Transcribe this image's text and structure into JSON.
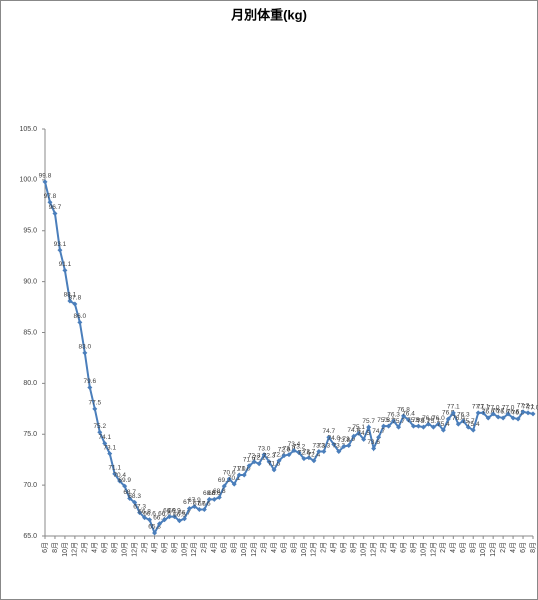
{
  "chart_data": {
    "type": "line",
    "title": "月別体重(kg)",
    "categories": [
      "6月",
      null,
      "8月",
      null,
      "10月",
      null,
      "12月",
      null,
      "2月",
      null,
      "4月",
      null,
      "6月",
      null,
      "8月",
      null,
      "10月",
      null,
      "12月",
      null,
      "2月",
      null,
      "4月",
      null,
      "6月",
      null,
      "8月",
      null,
      "10月",
      null,
      "12月",
      null,
      "2月",
      null,
      "4月",
      null,
      "6月",
      null,
      "8月",
      null,
      "10月",
      null,
      "12月",
      null,
      "2月",
      null,
      "4月",
      null,
      "6月",
      null,
      "8月",
      null,
      "10月",
      null,
      "12月",
      null,
      "2月",
      null,
      "4月",
      null,
      "6月",
      null,
      "8月",
      null,
      "10月",
      null,
      "12月",
      null,
      "2月",
      null,
      "4月",
      null,
      "6月",
      null,
      "8月",
      null,
      "10月",
      null,
      "12月",
      null,
      "2月",
      null,
      "4月",
      null,
      "6月",
      null,
      "8月",
      null,
      "10月",
      null,
      "12月",
      null,
      "2月",
      null,
      "4月",
      null,
      "6月",
      null,
      "8月"
    ],
    "series": [
      {
        "name": "体重",
        "color": "#4a7ebb",
        "values": [
          99.8,
          97.8,
          96.7,
          93.1,
          91.1,
          88.1,
          87.8,
          86.0,
          83.0,
          79.6,
          77.5,
          75.2,
          74.1,
          73.1,
          71.1,
          70.4,
          69.9,
          68.7,
          68.3,
          67.3,
          66.8,
          66.6,
          65.3,
          66.2,
          66.6,
          66.9,
          66.9,
          66.5,
          66.7,
          67.7,
          67.9,
          67.6,
          67.6,
          68.6,
          68.6,
          68.8,
          69.9,
          70.6,
          70.1,
          71.0,
          71.0,
          71.9,
          72.3,
          72.1,
          73.0,
          72.3,
          71.5,
          72.4,
          72.9,
          73.0,
          73.4,
          73.2,
          72.6,
          72.7,
          72.4,
          73.3,
          73.3,
          74.7,
          74.0,
          73.3,
          73.8,
          73.9,
          74.8,
          75.1,
          74.5,
          75.7,
          73.6,
          74.7,
          75.8,
          75.8,
          76.3,
          75.7,
          76.8,
          76.4,
          75.8,
          75.8,
          75.7,
          76.0,
          75.7,
          76.0,
          75.4,
          76.5,
          77.1,
          76.0,
          76.3,
          75.7,
          75.4,
          77.1,
          77.1,
          76.6,
          77.0,
          76.7,
          76.6,
          77.0,
          76.6,
          76.5,
          77.2,
          77.1,
          77.0
        ],
        "value_labels": [
          "99.8",
          "97.8",
          "96.7",
          "93.1",
          "91.1",
          "88.1",
          "87.8",
          "86.0",
          "83.0",
          "79.6",
          "77.5",
          "75.2",
          "74.1",
          "73.1",
          "71.1",
          "70.4",
          "69.9",
          "68.7",
          "68.3",
          "67.3",
          "66.8",
          "66.6",
          "65.3",
          "66.2",
          "66.6",
          "66.9",
          "66.9",
          "66.5",
          "66.7",
          "67.7",
          "67.9",
          "67.6",
          "67.6",
          "68.6",
          "68.6",
          "68.8",
          "69.9",
          "70.6",
          "70.1",
          "71.0",
          "71.0",
          "71.9",
          "72.3",
          "72.1",
          "73.0",
          "72.3",
          "71.5",
          "72.4",
          "72.9",
          "73.0",
          "73.4",
          "73.2",
          "72.6",
          "72.7",
          "72.4",
          "73.3",
          "73.3",
          "74.7",
          "74.0",
          "73.3",
          "73.8",
          "73.9",
          "74.8",
          "75.1",
          "74.5",
          "75.7",
          "73.6",
          "74.7",
          "75.8",
          "75.8",
          "76.3",
          "75.7",
          "76.8",
          "76.4",
          "75.8",
          "75.8",
          "75.7",
          "76.0",
          "75.7",
          "76.0",
          "75.4",
          "76.5",
          "77.1",
          "76.0",
          "76.3",
          "75.7",
          "75.4",
          "77.1",
          "77.1",
          "76.6",
          "77.0",
          "76.7",
          "76.6",
          "77.0",
          "76.6",
          "76.5",
          "77.2",
          "77.1",
          "77.0"
        ]
      }
    ],
    "ylim": [
      65,
      105
    ],
    "yticks": [
      {
        "value": 65,
        "label": "65.0"
      },
      {
        "value": 70,
        "label": "70.0"
      },
      {
        "value": 75,
        "label": "75.0"
      },
      {
        "value": 80,
        "label": "80.0"
      },
      {
        "value": 85,
        "label": "85.0"
      },
      {
        "value": 90,
        "label": "90.0"
      },
      {
        "value": 95,
        "label": "95.0"
      },
      {
        "value": 100,
        "label": "100.0"
      },
      {
        "value": 105,
        "label": "105.0"
      }
    ],
    "grid": false,
    "legend": false
  }
}
